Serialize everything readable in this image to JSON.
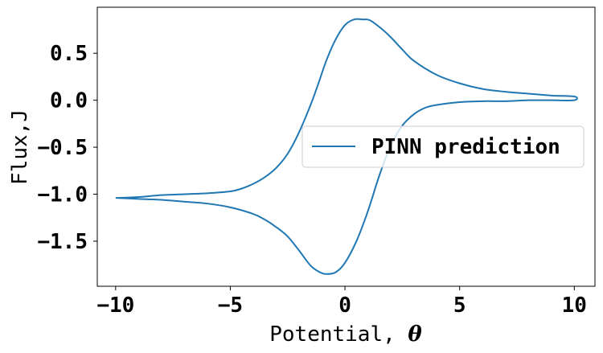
{
  "chart_data": {
    "type": "line",
    "title": "",
    "xlabel": "Potential, ",
    "xlabel_symbol": "θ",
    "ylabel": "Flux,J",
    "xlim": [
      -10.8,
      10.9
    ],
    "ylim": [
      -1.98,
      0.99
    ],
    "xticks": [
      -10,
      -5,
      0,
      5,
      10
    ],
    "xtick_labels": [
      "−10",
      "−5",
      "0",
      "5",
      "10"
    ],
    "yticks": [
      0.5,
      0.0,
      -0.5,
      -1.0,
      -1.5
    ],
    "ytick_labels": [
      "0.5",
      "0.0",
      "−0.5",
      "−1.0",
      "−1.5"
    ],
    "grid": false,
    "legend": {
      "position": "center-right",
      "entries": [
        "PINN prediction"
      ]
    },
    "series": [
      {
        "name": "PINN prediction",
        "color": "#1f77b4",
        "x": [
          -10,
          -9,
          -8,
          -7,
          -6,
          -5,
          -4.5,
          -4,
          -3.5,
          -3,
          -2.5,
          -2,
          -1.5,
          -1.2,
          -0.8,
          -0.4,
          0,
          0.4,
          0.8,
          1.1,
          1.6,
          2,
          2.5,
          3,
          4,
          5,
          6,
          7,
          8,
          9,
          10,
          10,
          9,
          8,
          7,
          6,
          5,
          4,
          3.5,
          3,
          2.5,
          2,
          1.5,
          1,
          0.5,
          0,
          -0.4,
          -0.8,
          -1.1,
          -1.5,
          -2,
          -2.5,
          -3,
          -3.5,
          -4,
          -5,
          -6,
          -7,
          -8,
          -9,
          -10
        ],
        "y": [
          -1.04,
          -1.03,
          -1.01,
          -1.0,
          -0.99,
          -0.97,
          -0.94,
          -0.89,
          -0.82,
          -0.72,
          -0.57,
          -0.34,
          -0.05,
          0.15,
          0.43,
          0.65,
          0.8,
          0.86,
          0.86,
          0.85,
          0.76,
          0.67,
          0.54,
          0.42,
          0.27,
          0.18,
          0.12,
          0.09,
          0.07,
          0.05,
          0.04,
          0.0,
          0.0,
          0.0,
          -0.01,
          -0.01,
          -0.02,
          -0.05,
          -0.08,
          -0.15,
          -0.27,
          -0.48,
          -0.8,
          -1.18,
          -1.5,
          -1.73,
          -1.83,
          -1.85,
          -1.83,
          -1.76,
          -1.6,
          -1.45,
          -1.35,
          -1.27,
          -1.21,
          -1.14,
          -1.1,
          -1.08,
          -1.06,
          -1.05,
          -1.04
        ]
      }
    ]
  }
}
